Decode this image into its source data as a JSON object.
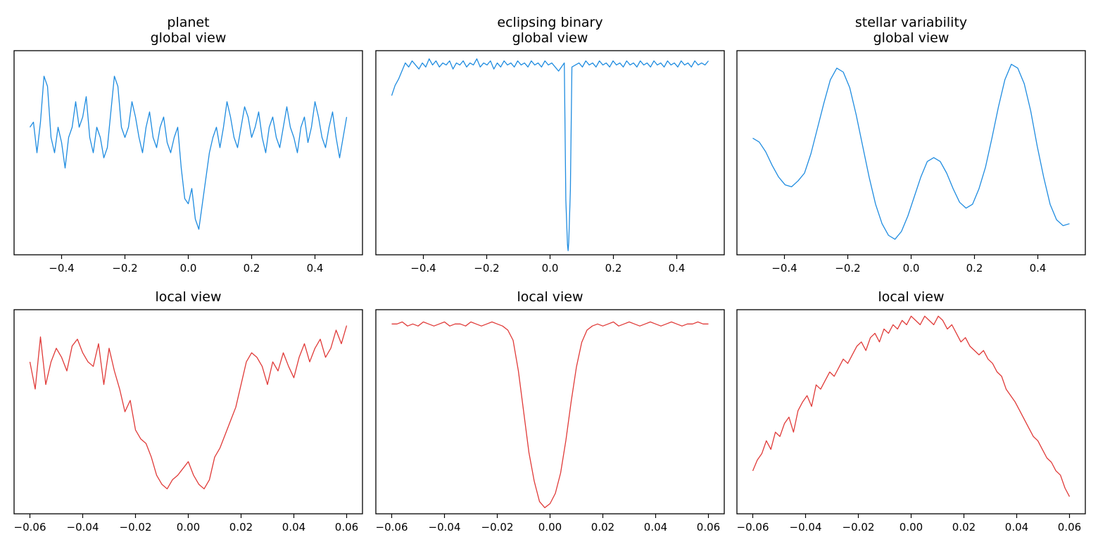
{
  "figure": {
    "line_color_global": "#1f8ce0",
    "line_color_local": "#e03a38"
  },
  "chart_data": [
    {
      "type": "line",
      "row": "global",
      "title": "planet\nglobal view",
      "xlabel": "",
      "ylabel": "",
      "xlim": [
        -0.55,
        0.55
      ],
      "xticks": [
        -0.4,
        -0.2,
        0.0,
        0.2,
        0.4
      ],
      "xtick_labels": [
        "−0.4",
        "−0.2",
        "0.0",
        "0.2",
        "0.4"
      ],
      "show_yticks": false,
      "grid": false,
      "series": [
        {
          "color": "#1f8ce0",
          "x_start": -0.5,
          "x_end": 0.5,
          "values": [
            0.6,
            0.61,
            0.55,
            0.61,
            0.7,
            0.68,
            0.58,
            0.55,
            0.6,
            0.57,
            0.52,
            0.58,
            0.6,
            0.65,
            0.6,
            0.62,
            0.66,
            0.58,
            0.55,
            0.6,
            0.58,
            0.54,
            0.56,
            0.63,
            0.7,
            0.68,
            0.6,
            0.58,
            0.6,
            0.65,
            0.62,
            0.58,
            0.55,
            0.6,
            0.63,
            0.58,
            0.56,
            0.6,
            0.62,
            0.57,
            0.55,
            0.58,
            0.6,
            0.52,
            0.46,
            0.45,
            0.48,
            0.42,
            0.4,
            0.45,
            0.5,
            0.55,
            0.58,
            0.6,
            0.56,
            0.6,
            0.65,
            0.62,
            0.58,
            0.56,
            0.6,
            0.64,
            0.62,
            0.58,
            0.6,
            0.63,
            0.58,
            0.55,
            0.6,
            0.62,
            0.58,
            0.56,
            0.6,
            0.64,
            0.6,
            0.58,
            0.55,
            0.6,
            0.62,
            0.57,
            0.6,
            0.65,
            0.62,
            0.58,
            0.56,
            0.6,
            0.63,
            0.58,
            0.54,
            0.58,
            0.62
          ]
        }
      ],
      "ylim": [
        0.35,
        0.75
      ]
    },
    {
      "type": "line",
      "row": "global",
      "title": "eclipsing binary\nglobal view",
      "xlabel": "",
      "ylabel": "",
      "xlim": [
        -0.55,
        0.55
      ],
      "xticks": [
        -0.4,
        -0.2,
        0.0,
        0.2,
        0.4
      ],
      "xtick_labels": [
        "−0.4",
        "−0.2",
        "0.0",
        "0.2",
        "0.4"
      ],
      "show_yticks": false,
      "grid": false,
      "series": [
        {
          "color": "#1f8ce0",
          "x_start": -0.5,
          "x_end": 0.5,
          "values": [
            0.78,
            0.83,
            0.86,
            0.9,
            0.94,
            0.92,
            0.95,
            0.93,
            0.91,
            0.94,
            0.92,
            0.96,
            0.93,
            0.95,
            0.92,
            0.94,
            0.93,
            0.95,
            0.91,
            0.94,
            0.93,
            0.95,
            0.92,
            0.94,
            0.93,
            0.96,
            0.92,
            0.94,
            0.93,
            0.95,
            0.91,
            0.94,
            0.92,
            0.95,
            0.93,
            0.94,
            0.92,
            0.95,
            0.93,
            0.94,
            0.92,
            0.95,
            0.93,
            0.94,
            0.92,
            0.95,
            0.93,
            0.94,
            0.92,
            0.9,
            0.93,
            0.94,
            0.92,
            0.95,
            0.93,
            0.94,
            0.92,
            0.95,
            0.93,
            0.94,
            0.92,
            0.95,
            0.93,
            0.94,
            0.92,
            0.95,
            0.93,
            0.94,
            0.92,
            0.95,
            0.93,
            0.94,
            0.92,
            0.95,
            0.93,
            0.94,
            0.92,
            0.95,
            0.93,
            0.94,
            0.92,
            0.95,
            0.93,
            0.94,
            0.92,
            0.95,
            0.93,
            0.94,
            0.92,
            0.95,
            0.93,
            0.94,
            0.93,
            0.95
          ],
          "dip": {
            "x": 0.057,
            "min": 0.02,
            "half_width": 0.012
          }
        }
      ],
      "ylim": [
        0.0,
        1.0
      ]
    },
    {
      "type": "line",
      "row": "global",
      "title": "stellar variability\nglobal view",
      "xlabel": "",
      "ylabel": "",
      "xlim": [
        -0.55,
        0.55
      ],
      "xticks": [
        -0.4,
        -0.2,
        0.0,
        0.2,
        0.4
      ],
      "xtick_labels": [
        "−0.4",
        "−0.2",
        "0.0",
        "0.2",
        "0.4"
      ],
      "show_yticks": false,
      "grid": false,
      "series": [
        {
          "color": "#1f8ce0",
          "x_start": -0.5,
          "x_end": 0.5,
          "values": [
            0.6,
            0.58,
            0.53,
            0.46,
            0.4,
            0.36,
            0.35,
            0.38,
            0.42,
            0.52,
            0.65,
            0.78,
            0.9,
            0.96,
            0.94,
            0.86,
            0.72,
            0.56,
            0.4,
            0.26,
            0.16,
            0.1,
            0.08,
            0.12,
            0.2,
            0.3,
            0.4,
            0.48,
            0.5,
            0.48,
            0.42,
            0.34,
            0.27,
            0.24,
            0.26,
            0.34,
            0.45,
            0.6,
            0.76,
            0.9,
            0.98,
            0.96,
            0.88,
            0.74,
            0.56,
            0.4,
            0.26,
            0.18,
            0.15,
            0.16
          ]
        }
      ],
      "ylim": [
        0.0,
        1.05
      ]
    },
    {
      "type": "line",
      "row": "local",
      "title": "local view",
      "xlabel": "",
      "ylabel": "",
      "xlim": [
        -0.066,
        0.066
      ],
      "xticks": [
        -0.06,
        -0.04,
        -0.02,
        0.0,
        0.02,
        0.04,
        0.06
      ],
      "xtick_labels": [
        "−0.06",
        "−0.04",
        "−0.02",
        "0.00",
        "0.02",
        "0.04",
        "0.06"
      ],
      "show_yticks": false,
      "grid": false,
      "series": [
        {
          "color": "#e03a38",
          "x_start": -0.06,
          "x_end": 0.06,
          "values": [
            0.72,
            0.6,
            0.83,
            0.62,
            0.72,
            0.78,
            0.74,
            0.68,
            0.79,
            0.82,
            0.76,
            0.72,
            0.7,
            0.8,
            0.62,
            0.78,
            0.68,
            0.6,
            0.5,
            0.55,
            0.42,
            0.38,
            0.36,
            0.3,
            0.22,
            0.18,
            0.16,
            0.2,
            0.22,
            0.25,
            0.28,
            0.22,
            0.18,
            0.16,
            0.2,
            0.3,
            0.34,
            0.4,
            0.46,
            0.52,
            0.62,
            0.72,
            0.76,
            0.74,
            0.7,
            0.62,
            0.72,
            0.68,
            0.76,
            0.7,
            0.65,
            0.74,
            0.8,
            0.72,
            0.78,
            0.82,
            0.74,
            0.78,
            0.86,
            0.8,
            0.88
          ]
        }
      ],
      "ylim": [
        0.05,
        0.95
      ]
    },
    {
      "type": "line",
      "row": "local",
      "title": "local view",
      "xlabel": "",
      "ylabel": "",
      "xlim": [
        -0.066,
        0.066
      ],
      "xticks": [
        -0.06,
        -0.04,
        -0.02,
        0.0,
        0.02,
        0.04,
        0.06
      ],
      "xtick_labels": [
        "−0.06",
        "−0.04",
        "−0.02",
        "0.00",
        "0.02",
        "0.04",
        "0.06"
      ],
      "show_yticks": false,
      "grid": false,
      "series": [
        {
          "color": "#e03a38",
          "x_start": -0.06,
          "x_end": 0.06,
          "values": [
            0.93,
            0.93,
            0.94,
            0.92,
            0.93,
            0.92,
            0.94,
            0.93,
            0.92,
            0.93,
            0.94,
            0.92,
            0.93,
            0.93,
            0.92,
            0.94,
            0.93,
            0.92,
            0.93,
            0.94,
            0.93,
            0.92,
            0.9,
            0.85,
            0.7,
            0.5,
            0.3,
            0.16,
            0.06,
            0.03,
            0.05,
            0.1,
            0.2,
            0.36,
            0.55,
            0.72,
            0.84,
            0.9,
            0.92,
            0.93,
            0.92,
            0.93,
            0.94,
            0.92,
            0.93,
            0.94,
            0.93,
            0.92,
            0.93,
            0.94,
            0.93,
            0.92,
            0.93,
            0.94,
            0.93,
            0.92,
            0.93,
            0.93,
            0.94,
            0.93,
            0.93
          ]
        }
      ],
      "ylim": [
        0.0,
        1.0
      ]
    },
    {
      "type": "line",
      "row": "local",
      "title": "local view",
      "xlabel": "",
      "ylabel": "",
      "xlim": [
        -0.066,
        0.066
      ],
      "xticks": [
        -0.06,
        -0.04,
        -0.02,
        0.0,
        0.02,
        0.04,
        0.06
      ],
      "xtick_labels": [
        "−0.06",
        "−0.04",
        "−0.02",
        "0.00",
        "0.02",
        "0.04",
        "0.06"
      ],
      "show_yticks": false,
      "grid": false,
      "series": [
        {
          "color": "#e03a38",
          "x_start": -0.06,
          "x_end": 0.06,
          "values": [
            0.2,
            0.25,
            0.28,
            0.34,
            0.3,
            0.38,
            0.36,
            0.42,
            0.45,
            0.38,
            0.48,
            0.52,
            0.55,
            0.5,
            0.6,
            0.58,
            0.62,
            0.66,
            0.64,
            0.68,
            0.72,
            0.7,
            0.74,
            0.78,
            0.8,
            0.76,
            0.82,
            0.84,
            0.8,
            0.86,
            0.84,
            0.88,
            0.86,
            0.9,
            0.88,
            0.92,
            0.9,
            0.88,
            0.92,
            0.9,
            0.88,
            0.92,
            0.9,
            0.86,
            0.88,
            0.84,
            0.8,
            0.82,
            0.78,
            0.76,
            0.74,
            0.76,
            0.72,
            0.7,
            0.66,
            0.64,
            0.58,
            0.55,
            0.52,
            0.48,
            0.44,
            0.4,
            0.36,
            0.34,
            0.3,
            0.26,
            0.24,
            0.2,
            0.18,
            0.12,
            0.08
          ]
        }
      ],
      "ylim": [
        0.0,
        0.95
      ]
    }
  ]
}
